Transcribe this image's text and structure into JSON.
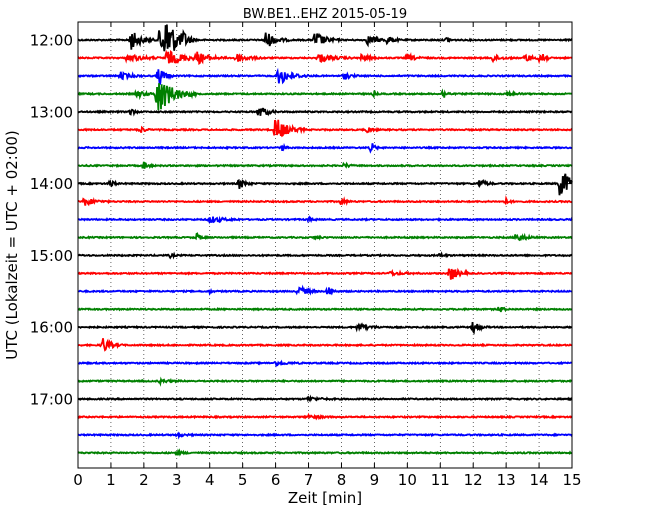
{
  "chart_data": {
    "type": "line",
    "title": "BW.BE1..EHZ 2015-05-19",
    "xlabel": "Zeit  [min]",
    "ylabel": "UTC (Lokalzeit = UTC + 02:00)",
    "xlim": [
      0,
      15
    ],
    "x_ticks": [
      "0",
      "1",
      "2",
      "3",
      "4",
      "5",
      "6",
      "7",
      "8",
      "9",
      "10",
      "11",
      "12",
      "13",
      "14",
      "15"
    ],
    "y_hour_labels": [
      {
        "time": "12:00",
        "row": 0
      },
      {
        "time": "13:00",
        "row": 4
      },
      {
        "time": "14:00",
        "row": 8
      },
      {
        "time": "15:00",
        "row": 12
      },
      {
        "time": "16:00",
        "row": 16
      },
      {
        "time": "17:00",
        "row": 20
      }
    ],
    "grid": "vertical dotted",
    "row_interval_minutes": 15,
    "series_colors": [
      "#000000",
      "#ff0000",
      "#0000ff",
      "#008000"
    ],
    "rows": [
      {
        "start": "12:00",
        "color": "#000000",
        "events": [
          [
            1.6,
            0.6,
            0.25
          ],
          [
            2.5,
            1.0,
            0.35
          ],
          [
            2.7,
            0.9,
            0.2
          ],
          [
            3.2,
            0.3,
            0.15
          ],
          [
            5.7,
            0.5,
            0.25
          ],
          [
            7.2,
            0.5,
            0.25
          ],
          [
            8.8,
            0.25,
            0.3
          ],
          [
            9.4,
            0.2,
            0.15
          ],
          [
            11.2,
            0.15,
            0.1
          ]
        ]
      },
      {
        "start": "12:15",
        "color": "#ff0000",
        "events": [
          [
            1.5,
            0.2,
            0.4
          ],
          [
            2.7,
            0.4,
            0.5
          ],
          [
            3.6,
            0.3,
            0.3
          ],
          [
            4.8,
            0.25,
            0.3
          ],
          [
            7.3,
            0.25,
            0.35
          ],
          [
            8.6,
            0.2,
            0.2
          ],
          [
            10.0,
            0.2,
            0.2
          ],
          [
            12.6,
            0.2,
            0.2
          ],
          [
            13.6,
            0.25,
            0.15
          ],
          [
            14.05,
            1.0,
            0.08
          ]
        ]
      },
      {
        "start": "12:30",
        "color": "#0000ff",
        "events": [
          [
            1.3,
            0.2,
            0.25
          ],
          [
            2.45,
            0.6,
            0.15
          ],
          [
            6.1,
            0.55,
            0.3
          ],
          [
            8.1,
            0.2,
            0.15
          ]
        ]
      },
      {
        "start": "12:45",
        "color": "#008000",
        "events": [
          [
            1.8,
            0.2,
            0.2
          ],
          [
            2.4,
            1.2,
            0.4
          ],
          [
            9.0,
            0.15,
            0.05
          ],
          [
            11.1,
            0.3,
            0.08
          ],
          [
            13.0,
            0.15,
            0.2
          ]
        ]
      },
      {
        "start": "13:00",
        "color": "#000000",
        "events": [
          [
            1.6,
            0.2,
            0.1
          ],
          [
            5.5,
            0.35,
            0.2
          ]
        ]
      },
      {
        "start": "13:15",
        "color": "#ff0000",
        "events": [
          [
            1.9,
            0.2,
            0.1
          ],
          [
            6.0,
            0.7,
            0.3
          ],
          [
            8.8,
            0.2,
            0.1
          ]
        ]
      },
      {
        "start": "13:30",
        "color": "#0000ff",
        "events": [
          [
            8.9,
            0.35,
            0.08
          ],
          [
            6.2,
            0.15,
            0.1
          ]
        ]
      },
      {
        "start": "13:45",
        "color": "#008000",
        "events": [
          [
            2.0,
            0.25,
            0.1
          ],
          [
            8.1,
            0.15,
            0.1
          ]
        ]
      },
      {
        "start": "14:00",
        "color": "#000000",
        "events": [
          [
            1.0,
            0.25,
            0.08
          ],
          [
            4.9,
            0.3,
            0.15
          ],
          [
            12.2,
            0.25,
            0.15
          ],
          [
            14.65,
            1.0,
            0.25
          ]
        ]
      },
      {
        "start": "14:15",
        "color": "#ff0000",
        "events": [
          [
            0.2,
            0.25,
            0.25
          ],
          [
            8.0,
            0.2,
            0.1
          ],
          [
            13.0,
            0.15,
            0.1
          ]
        ]
      },
      {
        "start": "14:30",
        "color": "#0000ff",
        "events": [
          [
            4.0,
            0.2,
            0.3
          ],
          [
            7.0,
            0.1,
            0.1
          ]
        ]
      },
      {
        "start": "14:45",
        "color": "#008000",
        "events": [
          [
            3.6,
            0.25,
            0.1
          ],
          [
            7.2,
            0.1,
            0.1
          ],
          [
            13.3,
            0.3,
            0.2
          ]
        ]
      },
      {
        "start": "15:00",
        "color": "#000000",
        "events": [
          [
            2.8,
            0.1,
            0.1
          ],
          [
            11.0,
            0.1,
            0.1
          ]
        ]
      },
      {
        "start": "15:15",
        "color": "#ff0000",
        "events": [
          [
            11.3,
            0.45,
            0.2
          ],
          [
            9.5,
            0.1,
            0.3
          ]
        ]
      },
      {
        "start": "15:30",
        "color": "#0000ff",
        "events": [
          [
            6.7,
            0.3,
            0.2
          ],
          [
            7.6,
            0.35,
            0.1
          ],
          [
            4.0,
            0.1,
            0.05
          ]
        ]
      },
      {
        "start": "15:45",
        "color": "#008000",
        "events": [
          [
            12.8,
            0.2,
            0.1
          ]
        ]
      },
      {
        "start": "16:00",
        "color": "#000000",
        "events": [
          [
            8.5,
            0.2,
            0.3
          ],
          [
            12.0,
            0.35,
            0.15
          ]
        ]
      },
      {
        "start": "16:15",
        "color": "#ff0000",
        "events": [
          [
            0.75,
            0.45,
            0.2
          ]
        ]
      },
      {
        "start": "16:30",
        "color": "#0000ff",
        "events": [
          [
            6.0,
            0.1,
            0.3
          ]
        ]
      },
      {
        "start": "16:45",
        "color": "#008000",
        "events": [
          [
            2.5,
            0.1,
            0.2
          ]
        ]
      },
      {
        "start": "17:00",
        "color": "#000000",
        "events": [
          [
            7.0,
            0.1,
            0.3
          ]
        ]
      },
      {
        "start": "17:15",
        "color": "#ff0000",
        "events": [
          [
            7.0,
            0.12,
            0.3
          ]
        ]
      },
      {
        "start": "17:30",
        "color": "#0000ff",
        "events": [
          [
            3.0,
            0.08,
            0.2
          ]
        ]
      },
      {
        "start": "17:45",
        "color": "#008000",
        "events": [
          [
            3.0,
            0.08,
            0.2
          ]
        ]
      }
    ]
  }
}
